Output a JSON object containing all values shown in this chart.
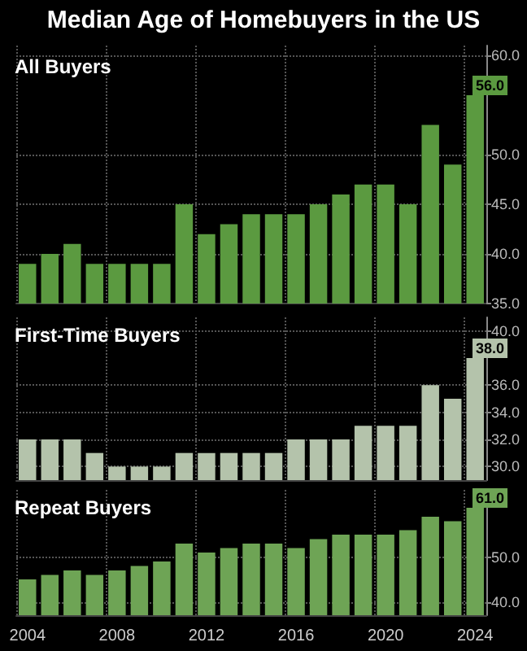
{
  "chart_data": [
    {
      "type": "bar",
      "title": "Median Age of Homebuyers in the US",
      "subtitle": "All Buyers",
      "categories": [
        "2004",
        null,
        null,
        null,
        "2008",
        null,
        null,
        null,
        "2012",
        null,
        null,
        null,
        "2016",
        null,
        null,
        null,
        "2020",
        null,
        null,
        null,
        "2024"
      ],
      "series": [
        {
          "color": "#5b9a40",
          "values": [
            39,
            40,
            41,
            39,
            39,
            39,
            39,
            45,
            42,
            43,
            44,
            44,
            44,
            45,
            46,
            47,
            47,
            45,
            53,
            49,
            56
          ],
          "value_labels": [
            null,
            null,
            null,
            null,
            null,
            null,
            null,
            null,
            null,
            null,
            null,
            null,
            null,
            null,
            null,
            null,
            null,
            null,
            null,
            null,
            "56.0"
          ]
        }
      ],
      "ylim": [
        35,
        61
      ],
      "yticks": [
        {
          "value": 35,
          "label": "35.0"
        },
        {
          "value": 40,
          "label": "40.0"
        },
        {
          "value": 45,
          "label": "45.0"
        },
        {
          "value": 50,
          "label": "50.0"
        },
        {
          "value": 60,
          "label": "60.0"
        }
      ],
      "grid": true,
      "tick_labels": "y"
    },
    {
      "type": "bar",
      "title": "First-Time Buyers",
      "categories": [
        "2004",
        null,
        null,
        null,
        "2008",
        null,
        null,
        null,
        "2012",
        null,
        null,
        null,
        "2016",
        null,
        null,
        null,
        "2020",
        null,
        null,
        null,
        "2024"
      ],
      "series": [
        {
          "color": "#b4c3ab",
          "values": [
            32,
            32,
            32,
            31,
            30,
            30,
            30,
            31,
            31,
            31,
            31,
            31,
            32,
            32,
            32,
            33,
            33,
            33,
            36,
            35,
            38
          ],
          "value_labels": [
            null,
            null,
            null,
            null,
            null,
            null,
            null,
            null,
            null,
            null,
            null,
            null,
            null,
            null,
            null,
            null,
            null,
            null,
            null,
            null,
            "38.0"
          ]
        }
      ],
      "ylim": [
        29,
        41
      ],
      "yticks": [
        {
          "value": 30,
          "label": "30.0"
        },
        {
          "value": 32,
          "label": "32.0"
        },
        {
          "value": 34,
          "label": "34.0"
        },
        {
          "value": 36,
          "label": "36.0"
        },
        {
          "value": 40,
          "label": "40.0"
        }
      ],
      "grid": true,
      "tick_labels": "y"
    },
    {
      "type": "bar",
      "title": "Repeat Buyers",
      "categories": [
        "2004",
        null,
        null,
        null,
        "2008",
        null,
        null,
        null,
        "2012",
        null,
        null,
        null,
        "2016",
        null,
        null,
        null,
        "2020",
        null,
        null,
        null,
        "2024"
      ],
      "series": [
        {
          "color": "#6ea455",
          "values": [
            45,
            46,
            47,
            46,
            47,
            48,
            49,
            53,
            51,
            52,
            53,
            53,
            52,
            54,
            55,
            55,
            55,
            56,
            59,
            58,
            61
          ],
          "value_labels": [
            null,
            null,
            null,
            null,
            null,
            null,
            null,
            null,
            null,
            null,
            null,
            null,
            null,
            null,
            null,
            null,
            null,
            null,
            null,
            null,
            "61.0"
          ]
        }
      ],
      "ylim": [
        37,
        65
      ],
      "yticks": [
        {
          "value": 40,
          "label": "40.0"
        },
        {
          "value": 50,
          "label": "50.0"
        }
      ],
      "grid": true
    }
  ]
}
